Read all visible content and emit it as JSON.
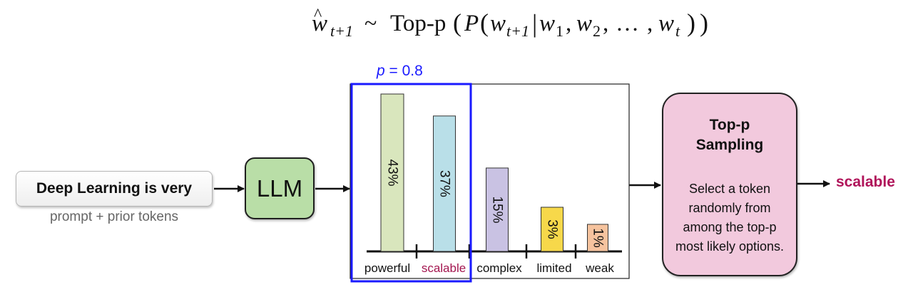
{
  "formula": {
    "w": "w",
    "hat": "^",
    "sub_t1": "t+1",
    "tilde": "~",
    "topp": "Top-p",
    "lparen": "(",
    "P": "P",
    "lparen2": "(",
    "w_a": "w",
    "sub_a": "t+1",
    "bar": "|",
    "w_b": "w",
    "sub_b": "1",
    "comma1": ",",
    "w_c": "w",
    "sub_c": "2",
    "comma2": ",",
    "dots": "…",
    "comma3": ",",
    "w_d": "w",
    "sub_d": "t",
    "rparen": ")",
    "rparen2": ")"
  },
  "prompt": {
    "text": "Deep Learning is very",
    "caption": "prompt + prior tokens"
  },
  "llm": {
    "label": "LLM"
  },
  "threshold": {
    "p": "p",
    "eq": "= 0.8",
    "color": "#1a1aff"
  },
  "chart_data": {
    "type": "bar",
    "categories": [
      "powerful",
      "scalable",
      "complex",
      "limited",
      "weak"
    ],
    "values": [
      43,
      37,
      15,
      3,
      1
    ],
    "labels": [
      "43%",
      "37%",
      "15%",
      "3%",
      "1%"
    ],
    "colors": [
      "#d9e6bd",
      "#b9dfe8",
      "#c9c2e3",
      "#f7d84a",
      "#f6c39e"
    ],
    "highlight_category": "scalable",
    "highlight_color": "#a3154f"
  },
  "sampler": {
    "title_line1": "Top-p",
    "title_line2": "Sampling",
    "desc": [
      "Select a token",
      "randomly from",
      "among the top-p",
      "most likely options."
    ]
  },
  "output": {
    "text": "scalable",
    "color": "#b0145a"
  }
}
